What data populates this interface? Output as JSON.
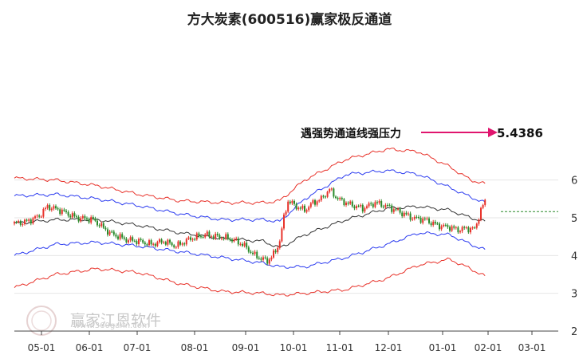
{
  "chart_data": {
    "type": "line",
    "title": "方大炭素(600516)赢家极反通道",
    "xlabel": "",
    "ylabel": "",
    "ylim": [
      2,
      6.5
    ],
    "y_ticks": [
      6,
      5,
      4,
      3,
      2
    ],
    "x_ticks": [
      "05-01",
      "06-01",
      "07-01",
      "08-01",
      "09-01",
      "10-01",
      "11-01",
      "12-01",
      "01-01",
      "02-01",
      "03-01"
    ],
    "grid": "horizontal",
    "colors": {
      "candle_up": "#e8332b",
      "candle_down": "#2a8a2a",
      "outer_band": "#e8332b",
      "inner_band": "#2c3cf0",
      "middle_line": "#333333",
      "arrow": "#e0156e"
    },
    "price_anchors": [
      [
        0,
        4.85
      ],
      [
        6,
        4.9
      ],
      [
        12,
        5.05
      ],
      [
        16,
        5.3
      ],
      [
        22,
        5.2
      ],
      [
        30,
        5.0
      ],
      [
        38,
        4.95
      ],
      [
        46,
        4.6
      ],
      [
        54,
        4.42
      ],
      [
        60,
        4.38
      ],
      [
        66,
        4.3
      ],
      [
        72,
        4.38
      ],
      [
        78,
        4.25
      ],
      [
        85,
        4.45
      ],
      [
        92,
        4.55
      ],
      [
        98,
        4.5
      ],
      [
        104,
        4.45
      ],
      [
        110,
        4.3
      ],
      [
        116,
        4.0
      ],
      [
        122,
        3.85
      ],
      [
        126,
        4.1
      ],
      [
        128,
        4.4
      ],
      [
        130,
        5.0
      ],
      [
        132,
        5.45
      ],
      [
        136,
        5.3
      ],
      [
        140,
        5.2
      ],
      [
        144,
        5.4
      ],
      [
        148,
        5.5
      ],
      [
        152,
        5.75
      ],
      [
        156,
        5.5
      ],
      [
        162,
        5.35
      ],
      [
        168,
        5.25
      ],
      [
        174,
        5.4
      ],
      [
        180,
        5.3
      ],
      [
        186,
        5.15
      ],
      [
        192,
        5.0
      ],
      [
        198,
        4.95
      ],
      [
        204,
        4.8
      ],
      [
        210,
        4.75
      ],
      [
        214,
        4.68
      ],
      [
        218,
        4.72
      ],
      [
        222,
        4.7
      ],
      [
        225,
        5.2
      ],
      [
        227,
        5.44
      ]
    ],
    "middle_line": [
      [
        0,
        4.85
      ],
      [
        20,
        4.95
      ],
      [
        40,
        4.95
      ],
      [
        60,
        4.8
      ],
      [
        80,
        4.6
      ],
      [
        100,
        4.45
      ],
      [
        120,
        4.38
      ],
      [
        128,
        4.2
      ],
      [
        140,
        4.55
      ],
      [
        160,
        4.95
      ],
      [
        180,
        5.25
      ],
      [
        195,
        5.3
      ],
      [
        210,
        5.2
      ],
      [
        220,
        5.0
      ],
      [
        227,
        4.9
      ]
    ],
    "inner_upper": [
      [
        0,
        5.58
      ],
      [
        20,
        5.62
      ],
      [
        40,
        5.5
      ],
      [
        60,
        5.32
      ],
      [
        80,
        5.1
      ],
      [
        100,
        4.95
      ],
      [
        120,
        4.95
      ],
      [
        128,
        4.9
      ],
      [
        140,
        5.5
      ],
      [
        160,
        6.15
      ],
      [
        180,
        6.25
      ],
      [
        195,
        6.15
      ],
      [
        210,
        5.8
      ],
      [
        220,
        5.55
      ],
      [
        227,
        5.4
      ]
    ],
    "inner_lower": [
      [
        0,
        4.0
      ],
      [
        20,
        4.3
      ],
      [
        40,
        4.35
      ],
      [
        60,
        4.25
      ],
      [
        80,
        4.1
      ],
      [
        100,
        3.95
      ],
      [
        120,
        3.8
      ],
      [
        128,
        3.7
      ],
      [
        140,
        3.7
      ],
      [
        160,
        3.95
      ],
      [
        180,
        4.3
      ],
      [
        195,
        4.6
      ],
      [
        210,
        4.55
      ],
      [
        220,
        4.3
      ],
      [
        227,
        4.15
      ]
    ],
    "outer_upper": [
      [
        0,
        6.05
      ],
      [
        20,
        6.0
      ],
      [
        40,
        5.85
      ],
      [
        60,
        5.62
      ],
      [
        80,
        5.45
      ],
      [
        100,
        5.4
      ],
      [
        120,
        5.4
      ],
      [
        128,
        5.45
      ],
      [
        140,
        6.0
      ],
      [
        160,
        6.55
      ],
      [
        180,
        6.82
      ],
      [
        195,
        6.75
      ],
      [
        210,
        6.35
      ],
      [
        220,
        6.0
      ],
      [
        227,
        5.9
      ]
    ],
    "outer_lower": [
      [
        0,
        3.15
      ],
      [
        20,
        3.5
      ],
      [
        40,
        3.65
      ],
      [
        60,
        3.55
      ],
      [
        80,
        3.25
      ],
      [
        100,
        3.05
      ],
      [
        120,
        3.0
      ],
      [
        128,
        2.95
      ],
      [
        140,
        3.0
      ],
      [
        160,
        3.1
      ],
      [
        180,
        3.4
      ],
      [
        195,
        3.75
      ],
      [
        210,
        3.9
      ],
      [
        220,
        3.65
      ],
      [
        227,
        3.45
      ]
    ],
    "annotation": {
      "text": "遇强势通道线强压力",
      "value_label": "5.4386",
      "value": 5.4386
    }
  },
  "watermark": {
    "brand": "赢家江恩软件",
    "url": "www.360gann.com"
  }
}
